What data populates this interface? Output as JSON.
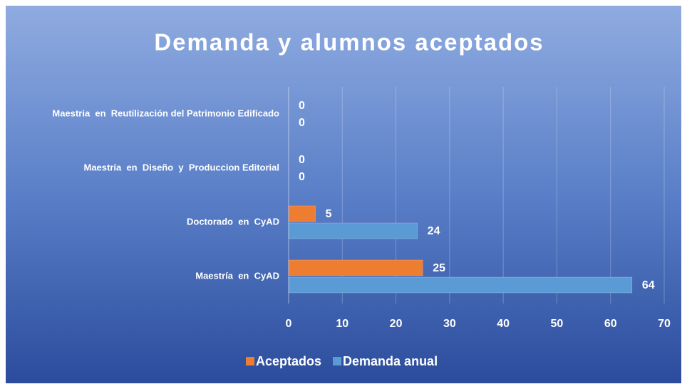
{
  "chart_data": {
    "type": "bar",
    "orientation": "horizontal",
    "title": "Demanda y alumnos aceptados",
    "categories": [
      "Maestria  en  Reutilización del Patrimonio Edificado",
      "Maestría  en  Diseño  y  Produccion Editorial",
      "Doctorado  en  CyAD",
      "Maestría  en  CyAD"
    ],
    "series": [
      {
        "name": "Aceptados",
        "color": "#ed7d31",
        "values": [
          0,
          0,
          5,
          25
        ]
      },
      {
        "name": "Demanda anual",
        "color": "#5b9bd5",
        "values": [
          0,
          0,
          24,
          64
        ]
      }
    ],
    "xlim": [
      0,
      70
    ],
    "xticks": [
      0,
      10,
      20,
      30,
      40,
      50,
      60,
      70
    ],
    "grid": true,
    "legend": "bottom"
  }
}
